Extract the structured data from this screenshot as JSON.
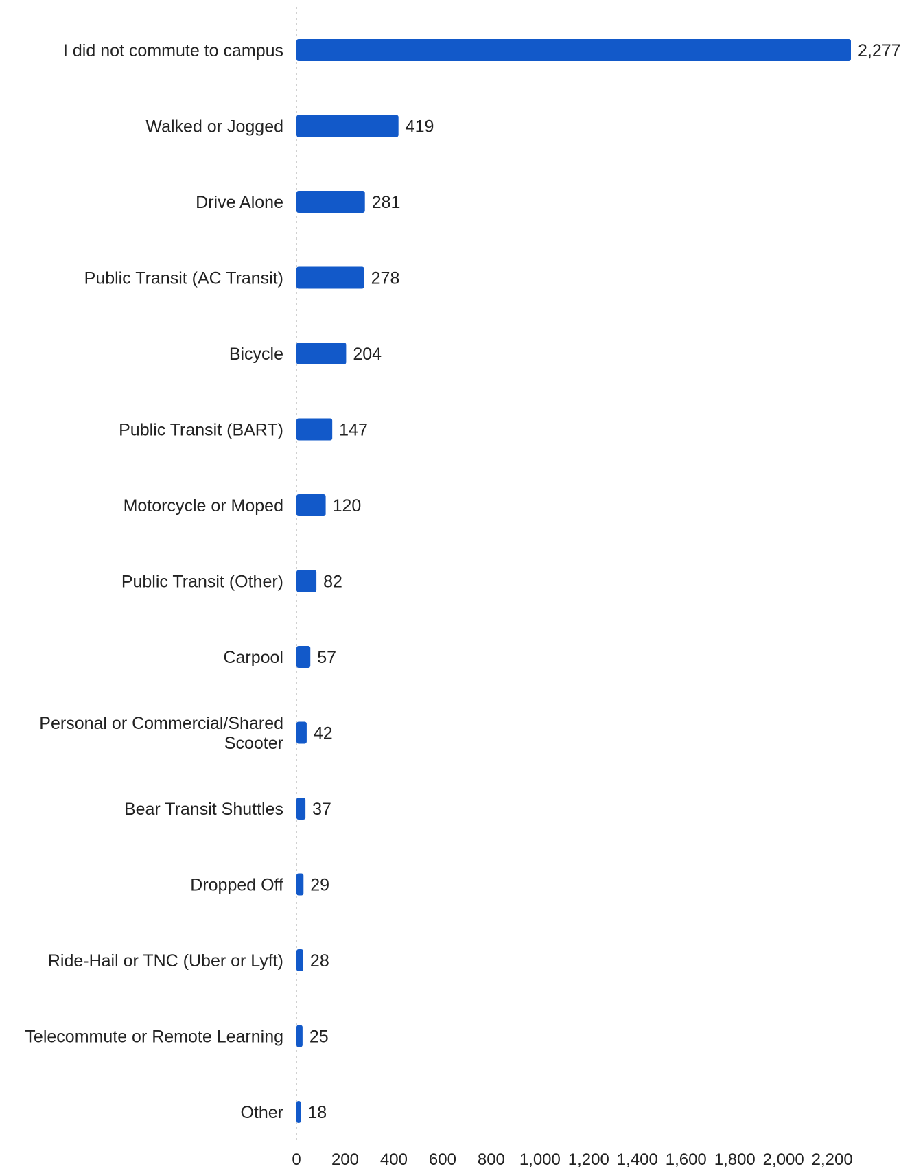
{
  "chart_data": {
    "type": "bar",
    "orientation": "horizontal",
    "bar_color": "#1259c9",
    "axis_color": "#d0d0d0",
    "grid": false,
    "xlim": [
      0,
      2277
    ],
    "x_ticks": [
      0,
      200,
      400,
      600,
      800,
      1000,
      1200,
      1400,
      1600,
      1800,
      2000,
      2200
    ],
    "x_tick_labels": [
      "0",
      "200",
      "400",
      "600",
      "800",
      "1,000",
      "1,200",
      "1,400",
      "1,600",
      "1,800",
      "2,000",
      "2,200"
    ],
    "categories": [
      [
        "I did not commute to campus"
      ],
      [
        "Walked or Jogged"
      ],
      [
        "Drive Alone"
      ],
      [
        "Public Transit (AC Transit)"
      ],
      [
        "Bicycle"
      ],
      [
        "Public Transit (BART)"
      ],
      [
        "Motorcycle or Moped"
      ],
      [
        "Public Transit (Other)"
      ],
      [
        "Carpool"
      ],
      [
        "Personal or Commercial/Shared",
        "Scooter"
      ],
      [
        "Bear Transit Shuttles"
      ],
      [
        "Dropped Off"
      ],
      [
        "Ride-Hail or TNC (Uber or Lyft)"
      ],
      [
        "Telecommute or Remote Learning"
      ],
      [
        "Other"
      ]
    ],
    "values": [
      2277,
      419,
      281,
      278,
      204,
      147,
      120,
      82,
      57,
      42,
      37,
      29,
      28,
      25,
      18
    ],
    "value_labels": [
      "2,277",
      "419",
      "281",
      "278",
      "204",
      "147",
      "120",
      "82",
      "57",
      "42",
      "37",
      "29",
      "28",
      "25",
      "18"
    ]
  }
}
